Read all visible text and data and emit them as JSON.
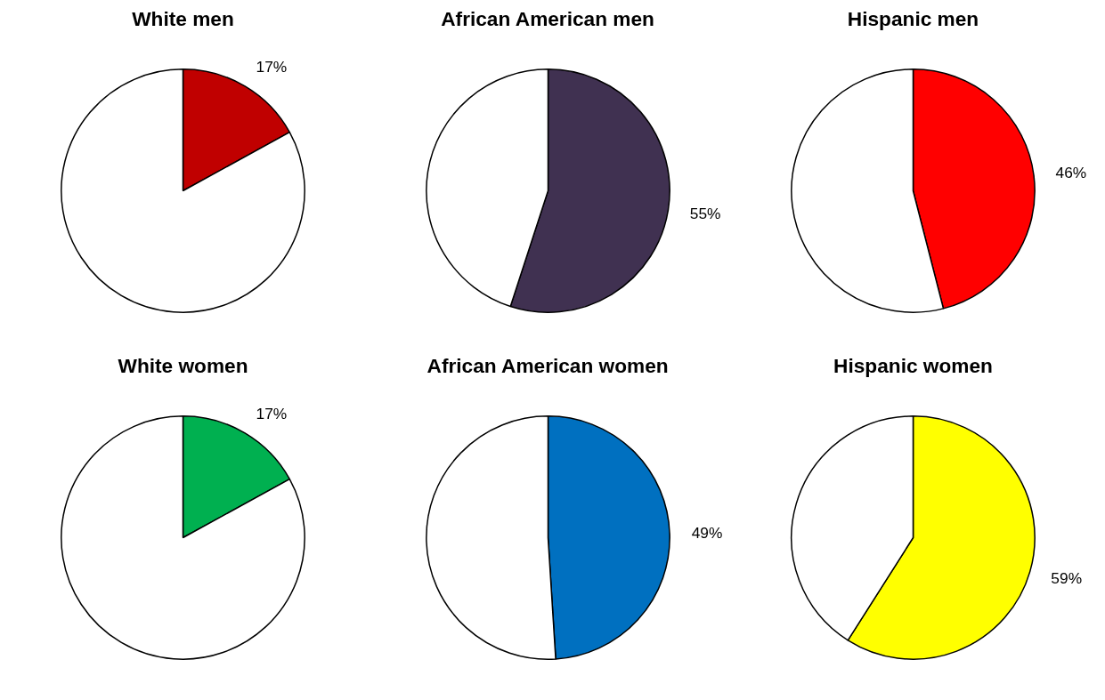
{
  "chart_data": [
    {
      "type": "pie",
      "title": "White men",
      "categories": [
        null,
        null
      ],
      "values": [
        17,
        83
      ],
      "colors": [
        "#c00000",
        "#ffffff"
      ],
      "value_labels": [
        "17%",
        null
      ]
    },
    {
      "type": "pie",
      "title": "African American men",
      "categories": [
        null,
        null
      ],
      "values": [
        55,
        45
      ],
      "colors": [
        "#403151",
        "#ffffff"
      ],
      "value_labels": [
        "55%",
        null
      ]
    },
    {
      "type": "pie",
      "title": "Hispanic men",
      "categories": [
        null,
        null
      ],
      "values": [
        46,
        54
      ],
      "colors": [
        "#ff0000",
        "#ffffff"
      ],
      "value_labels": [
        "46%",
        null
      ]
    },
    {
      "type": "pie",
      "title": "White women",
      "categories": [
        null,
        null
      ],
      "values": [
        17,
        83
      ],
      "colors": [
        "#00b050",
        "#ffffff"
      ],
      "value_labels": [
        "17%",
        null
      ]
    },
    {
      "type": "pie",
      "title": "African American women",
      "categories": [
        null,
        null
      ],
      "values": [
        49,
        51
      ],
      "colors": [
        "#0070c0",
        "#ffffff"
      ],
      "value_labels": [
        "49%",
        null
      ]
    },
    {
      "type": "pie",
      "title": "Hispanic women",
      "categories": [
        null,
        null
      ],
      "values": [
        59,
        41
      ],
      "colors": [
        "#ffff00",
        "#ffffff"
      ],
      "value_labels": [
        "59%",
        null
      ]
    }
  ]
}
